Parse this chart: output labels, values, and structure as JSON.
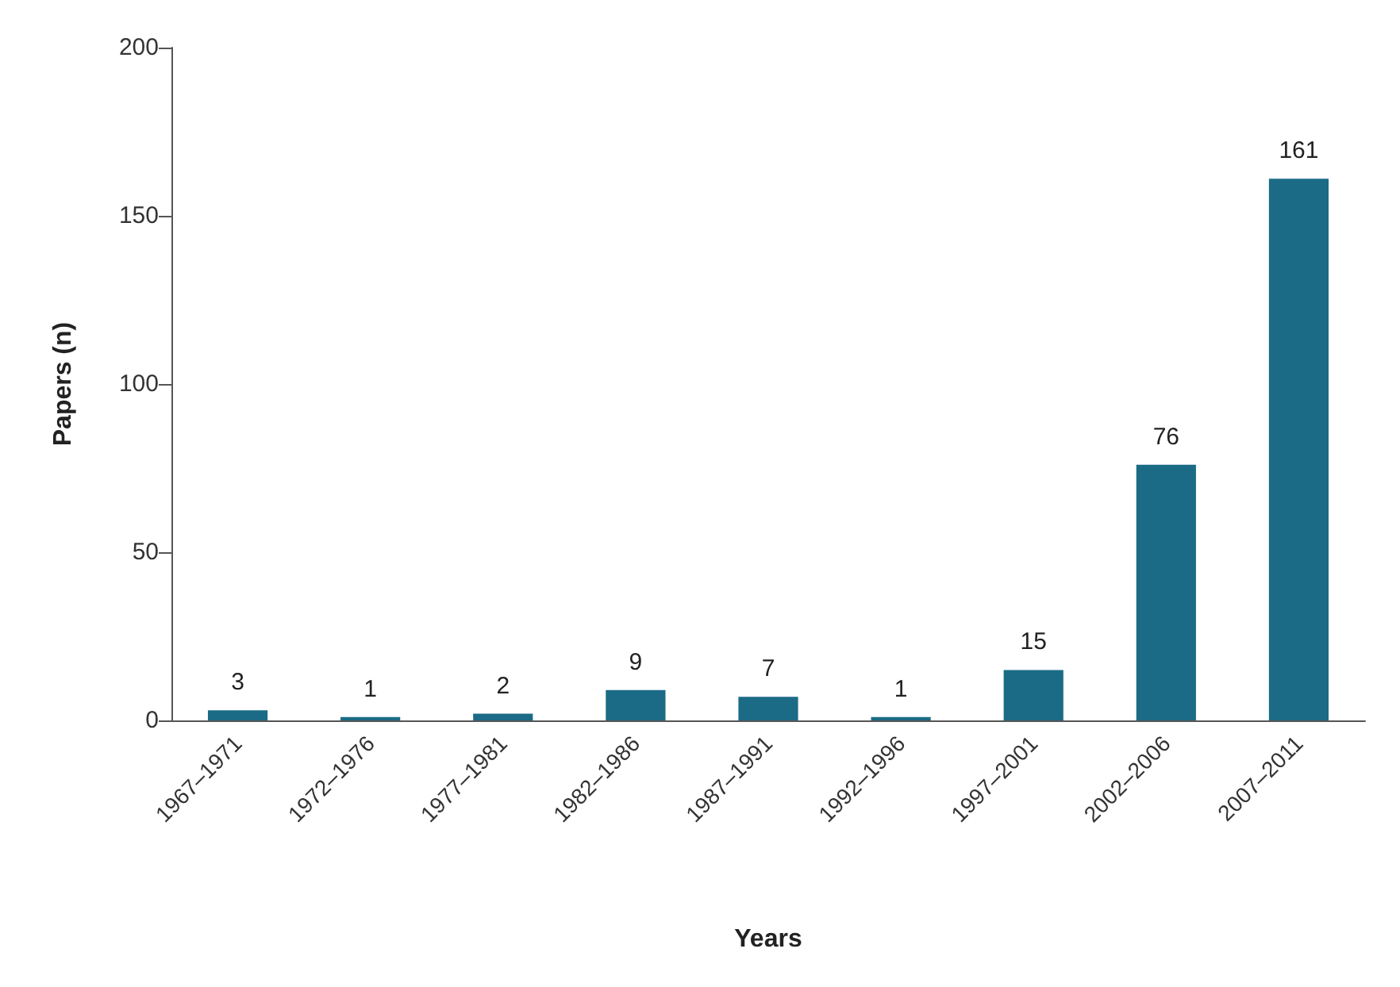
{
  "chart_data": {
    "type": "bar",
    "xlabel": "Years",
    "ylabel": "Papers (n)",
    "categories": [
      "1967–1971",
      "1972–1976",
      "1977–1981",
      "1982–1986",
      "1987–1991",
      "1992–1996",
      "1997–2001",
      "2002–2006",
      "2007–2011"
    ],
    "values": [
      3,
      1,
      2,
      9,
      7,
      1,
      15,
      76,
      161
    ],
    "color": "#1b6b86",
    "ylim": [
      0,
      200
    ],
    "yticks": [
      0,
      50,
      100,
      150,
      200
    ],
    "grid": false,
    "data_labels": true
  }
}
